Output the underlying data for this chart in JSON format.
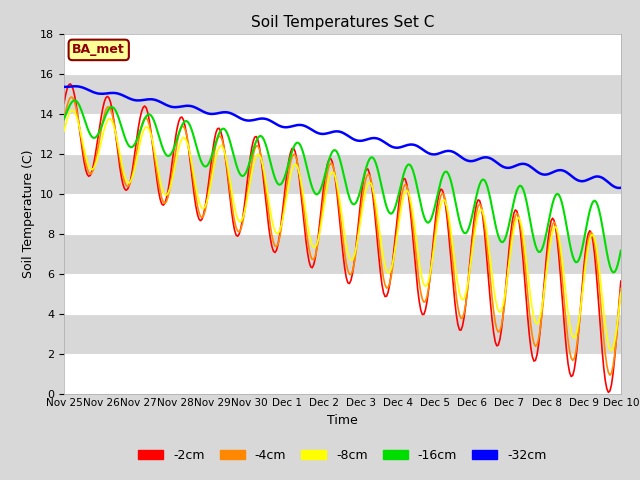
{
  "title": "Soil Temperatures Set C",
  "xlabel": "Time",
  "ylabel": "Soil Temperature (C)",
  "annotation": "BA_met",
  "ylim": [
    0,
    18
  ],
  "legend_labels": [
    "-2cm",
    "-4cm",
    "-8cm",
    "-16cm",
    "-32cm"
  ],
  "line_colors": [
    "#ff0000",
    "#ff8800",
    "#ffff00",
    "#00dd00",
    "#0000ff"
  ],
  "line_widths": [
    1.2,
    1.2,
    1.2,
    1.5,
    1.8
  ],
  "bg_color": "#d8d8d8",
  "plot_bg_color": "#d8d8d8",
  "band_color": "#c8c8c8",
  "grid_color": "#ffffff",
  "annotation_bg": "#ffff99",
  "annotation_border": "#8b0000",
  "annotation_text_color": "#8b0000",
  "tick_fontsize": 7.5,
  "label_fontsize": 9,
  "title_fontsize": 11
}
